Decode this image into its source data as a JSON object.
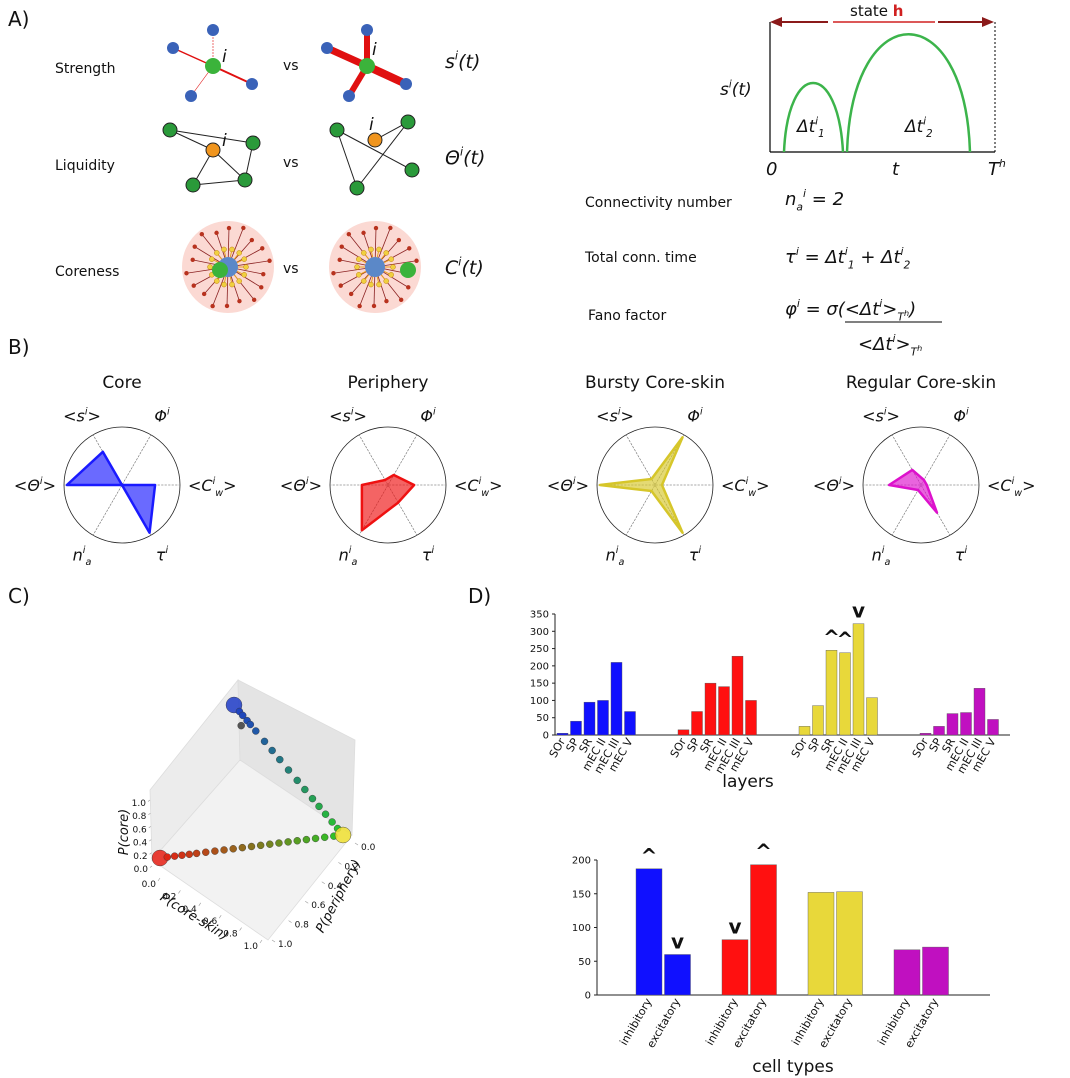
{
  "panel_labels": [
    "A)",
    "B)",
    "C)",
    "D)"
  ],
  "panel_a": {
    "vs": "vs",
    "node_label": "i",
    "rows": [
      {
        "label": "Strength",
        "symbol": [
          {
            "text": "s"
          },
          {
            "sup": "i"
          },
          {
            "text": "(t)"
          }
        ]
      },
      {
        "label": "Liquidity",
        "symbol": [
          {
            "text": "Θ"
          },
          {
            "sup": "i"
          },
          {
            "text": "(t)"
          }
        ]
      },
      {
        "label": "Coreness",
        "symbol": [
          {
            "text": "C"
          },
          {
            "sup": "i"
          },
          {
            "text": "(t)"
          }
        ]
      }
    ],
    "timeline": {
      "state": [
        {
          "text": "state "
        },
        {
          "em": "h"
        }
      ],
      "ylabel": [
        {
          "text": "s"
        },
        {
          "sup": "i"
        },
        {
          "text": "(t)"
        }
      ],
      "intervals": [
        [
          {
            "text": "Δt"
          },
          {
            "sup": "i"
          },
          {
            "sub": "1"
          }
        ],
        [
          {
            "text": "Δt"
          },
          {
            "sup": "i"
          },
          {
            "sub": "2"
          }
        ]
      ],
      "xticks": [
        [
          {
            "text": "0"
          }
        ],
        [
          {
            "text": "t"
          }
        ],
        [
          {
            "text": "T"
          },
          {
            "sup": "h"
          }
        ]
      ]
    },
    "measures": [
      {
        "name": "Connectivity number",
        "formula": [
          {
            "text": "n"
          },
          {
            "sub": "a"
          },
          {
            "sup": "i"
          },
          {
            "text": " = 2"
          }
        ]
      },
      {
        "name": "Total conn. time",
        "formula": [
          {
            "text": "τ"
          },
          {
            "sup": "i"
          },
          {
            "text": " = Δt"
          },
          {
            "sup": "i"
          },
          {
            "sub": "1"
          },
          {
            "text": " + Δt"
          },
          {
            "sup": "i"
          },
          {
            "sub": "2"
          }
        ]
      },
      {
        "name": "Fano factor",
        "formula": [
          {
            "text": "φ"
          },
          {
            "sup": "i"
          },
          {
            "text": " = σ(<Δt"
          },
          {
            "sup": "i"
          },
          {
            "text": ">"
          },
          {
            "sub": "T"
          },
          {
            "subsup": "h"
          },
          {
            "text": ")"
          }
        ],
        "denominator": [
          {
            "text": "<Δt"
          },
          {
            "sup": "i"
          },
          {
            "text": ">"
          },
          {
            "sub": "T"
          },
          {
            "subsup": "h"
          }
        ]
      }
    ]
  },
  "radar_axes": [
    [
      {
        "text": "<s"
      },
      {
        "sup": "i"
      },
      {
        "text": ">"
      }
    ],
    [
      {
        "text": "Φ"
      },
      {
        "sup": "i"
      }
    ],
    [
      {
        "text": "<C"
      },
      {
        "sup": "i"
      },
      {
        "sub": "w"
      },
      {
        "text": ">"
      }
    ],
    [
      {
        "text": "τ"
      },
      {
        "sup": "i"
      }
    ],
    [
      {
        "text": "n"
      },
      {
        "sup": "i"
      },
      {
        "sub": "a"
      }
    ],
    [
      {
        "text": "<Θ"
      },
      {
        "sup": "i"
      },
      {
        "text": ">"
      }
    ]
  ],
  "chart_data": [
    {
      "type": "radar",
      "title": "Core",
      "color": "#1a1aff",
      "rlim": [
        0,
        1
      ],
      "values": [
        0.66,
        0,
        0.57,
        0.95,
        0,
        0.95
      ]
    },
    {
      "type": "radar",
      "title": "Periphery",
      "color": "#ee1111",
      "rlim": [
        0,
        1
      ],
      "values": [
        0.1,
        0.2,
        0.45,
        0.35,
        0.9,
        0.45
      ]
    },
    {
      "type": "radar",
      "title": "Bursty Core-skin",
      "color": "#d6c62a",
      "rlim": [
        0,
        1
      ],
      "values": [
        0.12,
        0.95,
        0.12,
        0.95,
        0.12,
        0.95
      ]
    },
    {
      "type": "radar",
      "title": "Regular Core-skin",
      "color": "#dd11cc",
      "rlim": [
        0,
        1
      ],
      "values": [
        0.3,
        0.1,
        0.1,
        0.55,
        0.1,
        0.55
      ]
    },
    {
      "type": "scatter3d",
      "axes": [
        {
          "label": "P(core)",
          "ticks": [
            {
              "value": 0,
              "label": "0.0"
            },
            0.2,
            0.4,
            0.6,
            0.8,
            {
              "value": 1,
              "label": "1.0"
            }
          ]
        },
        {
          "label": "P(core-skin)",
          "ticks": [
            {
              "value": 0,
              "label": "0.0"
            },
            0.2,
            0.4,
            0.6,
            0.8,
            {
              "value": 1,
              "label": "1.0"
            }
          ]
        },
        {
          "label": "P(periphery)",
          "ticks": [
            {
              "value": 0,
              "label": "0.0"
            },
            0.2,
            0.4,
            0.6,
            0.8,
            {
              "value": 1,
              "label": "1.0"
            }
          ]
        }
      ],
      "core": [
        1,
        0.95,
        0.92,
        0.88,
        0.85,
        0.8,
        0.72,
        0.65,
        0.58,
        0.5,
        0.42,
        0.35,
        0.28,
        0.22,
        0.16,
        0.1,
        0.05,
        0,
        0,
        0,
        0,
        0,
        0,
        0,
        0,
        0,
        0,
        0,
        0,
        0,
        0,
        0,
        0,
        0,
        0,
        0,
        0,
        0,
        0,
        0.85
      ],
      "core_skin": [
        0,
        0.05,
        0.08,
        0.12,
        0.15,
        0.2,
        0.28,
        0.35,
        0.42,
        0.5,
        0.58,
        0.65,
        0.72,
        0.78,
        0.84,
        0.9,
        0.95,
        0,
        0.04,
        0.08,
        0.12,
        0.16,
        0.2,
        0.25,
        0.3,
        0.35,
        0.4,
        0.45,
        0.5,
        0.55,
        0.6,
        0.65,
        0.7,
        0.75,
        0.8,
        0.85,
        0.9,
        0.95,
        1,
        0.1
      ],
      "periphery": [
        0,
        0,
        0,
        0,
        0,
        0,
        0,
        0,
        0,
        0,
        0,
        0,
        0,
        0,
        0,
        0,
        0,
        1,
        0.96,
        0.92,
        0.88,
        0.84,
        0.8,
        0.75,
        0.7,
        0.65,
        0.6,
        0.55,
        0.5,
        0.45,
        0.4,
        0.35,
        0.3,
        0.25,
        0.2,
        0.15,
        0.1,
        0.05,
        0,
        0.05
      ]
    },
    {
      "type": "grouped_bar",
      "xlabel": "layers",
      "categories": [
        "SOr",
        "SP",
        "SR",
        "mEC II",
        "mEC III",
        "mEC V"
      ],
      "series": [
        {
          "color": "#1010ff",
          "values": [
            5,
            40,
            95,
            100,
            210,
            68
          ]
        },
        {
          "color": "#ff1010",
          "values": [
            15,
            68,
            150,
            140,
            228,
            100
          ]
        },
        {
          "color": "#e8d83a",
          "values": [
            25,
            85,
            245,
            238,
            322,
            108
          ]
        },
        {
          "color": "#c010c0",
          "values": [
            5,
            25,
            62,
            65,
            135,
            45
          ]
        }
      ],
      "ylim": [
        0,
        350
      ],
      "yticks": [
        0,
        50,
        100,
        150,
        200,
        250,
        300,
        350
      ],
      "markers": [
        {
          "series": 2,
          "index": 2,
          "label": "^",
          "color": "#33aa11"
        },
        {
          "series": 2,
          "index": 3,
          "label": "^",
          "color": "#33aa11"
        },
        {
          "series": 2,
          "index": 4,
          "label": "v",
          "color": "#cc2200"
        }
      ]
    },
    {
      "type": "grouped_bar",
      "xlabel": "cell types",
      "categories": [
        "inhibitory",
        "excitatory"
      ],
      "series": [
        {
          "color": "#1010ff",
          "values": [
            187,
            60
          ]
        },
        {
          "color": "#ff1010",
          "values": [
            82,
            193
          ]
        },
        {
          "color": "#e8d83a",
          "values": [
            152,
            153
          ]
        },
        {
          "color": "#c010c0",
          "values": [
            67,
            71
          ]
        }
      ],
      "ylim": [
        0,
        200
      ],
      "yticks": [
        0,
        50,
        100,
        150,
        200
      ],
      "markers": [
        {
          "series": 0,
          "index": 0,
          "label": "^",
          "color": "#33aa11"
        },
        {
          "series": 0,
          "index": 1,
          "label": "v",
          "color": "#cc2200"
        },
        {
          "series": 1,
          "index": 0,
          "label": "v",
          "color": "#cc2200"
        },
        {
          "series": 1,
          "index": 1,
          "label": "^",
          "color": "#33aa11"
        }
      ]
    }
  ]
}
